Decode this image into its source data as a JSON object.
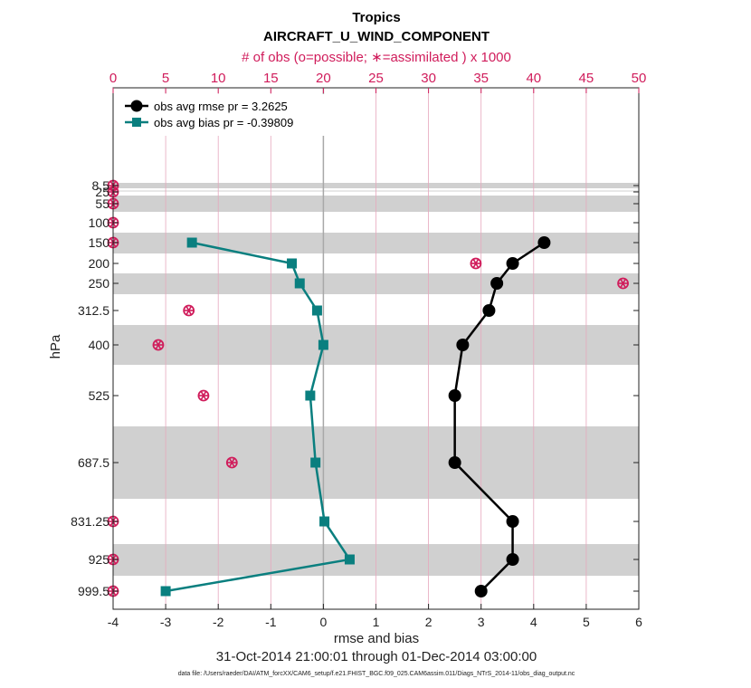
{
  "chart_data": {
    "type": "line",
    "title": "Tropics",
    "subtitle": "AIRCRAFT_U_WIND_COMPONENT",
    "top_axis_label": "# of obs (o=possible; ∗=assimilated ) x 1000",
    "top_axis_ticks": [
      0,
      5,
      10,
      15,
      20,
      25,
      30,
      35,
      40,
      45,
      50
    ],
    "top_axis_range": [
      0,
      50
    ],
    "xlabel": "rmse and bias",
    "ylabel": "hPa",
    "x_ticks": [
      -4,
      -3,
      -2,
      -1,
      0,
      1,
      2,
      3,
      4,
      5,
      6
    ],
    "xlim": [
      -4,
      6
    ],
    "date_range": "31-Oct-2014 21:00:01 through 01-Dec-2014 03:00:00",
    "footnote": "data file: /Users/raeder/DAI/ATM_forcXX/CAM6_setup/f.e21.FHIST_BGC.f09_025.CAM6assim.011/Diags_NTrS_2014-11/obs_diag_output.nc",
    "levels": [
      8.5,
      25,
      55,
      100,
      150,
      200,
      250,
      312.5,
      400,
      525,
      687.5,
      831.25,
      925,
      999.5
    ],
    "level_labels": [
      "8.5",
      "25",
      "55",
      "100",
      "150",
      "200",
      "250",
      "312.5",
      "400",
      "525",
      "687.5",
      "831.25",
      "925",
      "999.5"
    ],
    "shaded_levels": [
      8.5,
      55,
      150,
      250,
      400,
      687.5,
      925
    ],
    "series": [
      {
        "name": "obs avg rmse",
        "legend": "obs avg rmse pr = 3.2625",
        "color": "#000000",
        "marker": "circle",
        "levels": [
          150,
          200,
          250,
          312.5,
          400,
          525,
          687.5,
          831.25,
          925,
          999.5
        ],
        "values": [
          4.2,
          3.6,
          3.3,
          3.15,
          2.65,
          2.5,
          2.5,
          3.6,
          3.6,
          3.0
        ]
      },
      {
        "name": "obs avg bias",
        "legend": "obs avg bias pr = -0.39809",
        "color": "#0a7f7f",
        "marker": "square",
        "levels": [
          150,
          200,
          250,
          312.5,
          400,
          525,
          687.5,
          831.25,
          925,
          999.5
        ],
        "values": [
          -2.5,
          -0.6,
          -0.45,
          -0.12,
          0.0,
          -0.25,
          -0.15,
          0.02,
          0.5,
          -3.0
        ]
      }
    ],
    "obs_counts": {
      "color": "#d01c5b",
      "note": "values x 1000 on top axis",
      "levels": [
        8.5,
        25,
        55,
        100,
        150,
        200,
        250,
        312.5,
        400,
        525,
        687.5,
        831.25,
        925,
        999.5
      ],
      "possible": [
        0,
        0,
        0,
        0,
        0,
        34.5,
        48.5,
        7.2,
        4.3,
        8.6,
        11.3,
        0,
        0,
        0
      ],
      "assimilated": [
        0,
        0,
        0,
        0,
        0,
        34.5,
        48.5,
        7.2,
        4.3,
        8.6,
        11.3,
        0,
        0,
        0
      ]
    }
  }
}
